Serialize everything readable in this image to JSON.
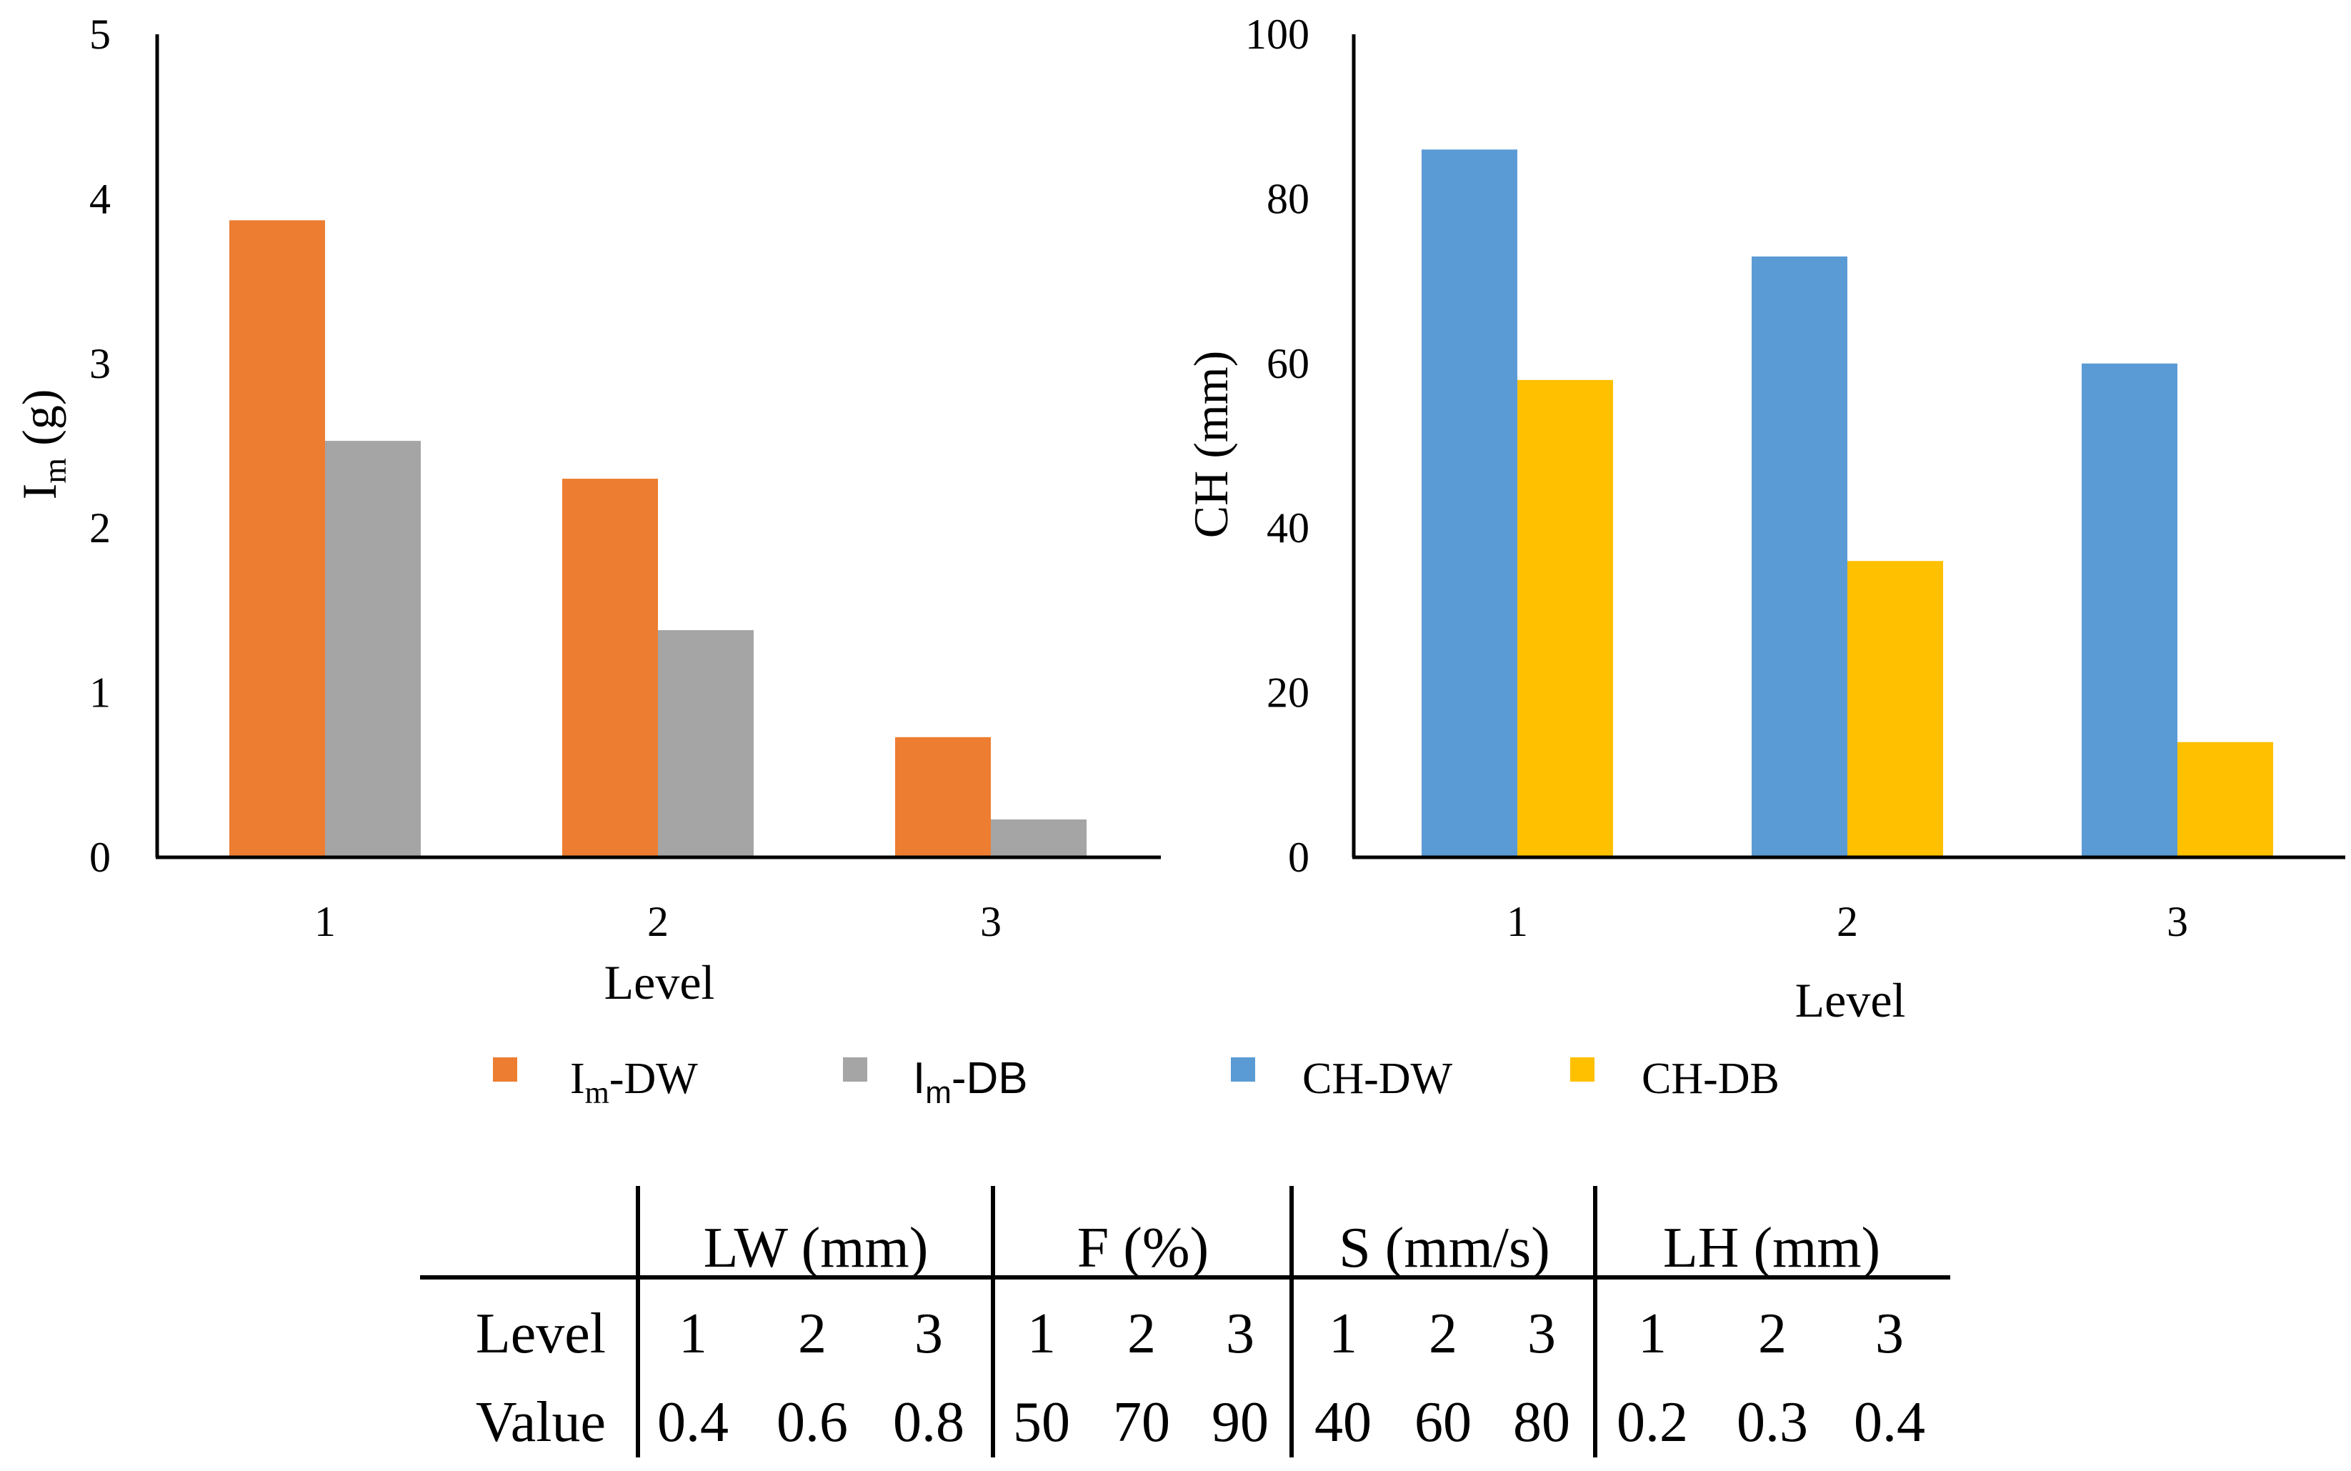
{
  "chart_data": [
    {
      "type": "bar",
      "title": "",
      "xlabel": "Level",
      "ylabel": {
        "main": "I",
        "sub": "m",
        "unit": " (g)"
      },
      "categories": [
        "1",
        "2",
        "3"
      ],
      "ylim": [
        0,
        5
      ],
      "yticks": [
        "0",
        "1",
        "2",
        "3",
        "4",
        "5"
      ],
      "series": [
        {
          "name": {
            "main": "I",
            "sub": "m",
            "rest": "-DW"
          },
          "color": "#ED7D31",
          "values": [
            3.87,
            2.3,
            0.73
          ]
        },
        {
          "name": {
            "main": "I",
            "sub": "m",
            "rest": "-DB"
          },
          "color": "#A5A5A5",
          "values": [
            2.53,
            1.38,
            0.23
          ]
        }
      ],
      "grid": false
    },
    {
      "type": "bar",
      "title": "",
      "xlabel": "Level",
      "ylabel": "CH (mm)",
      "categories": [
        "1",
        "2",
        "3"
      ],
      "ylim": [
        0,
        100
      ],
      "yticks": [
        "0",
        "20",
        "40",
        "60",
        "80",
        "100"
      ],
      "series": [
        {
          "name": "CH-DW",
          "color": "#5B9BD5",
          "values": [
            86,
            73,
            60
          ]
        },
        {
          "name": "CH-DB",
          "color": "#FFC000",
          "values": [
            58,
            36,
            14
          ]
        }
      ],
      "grid": false
    }
  ],
  "parameter_table": {
    "groups": [
      "LW (mm)",
      "F (%)",
      "S (mm/s)",
      "LH (mm)"
    ],
    "row_labels": [
      "Level",
      "Value"
    ],
    "levels": [
      "1",
      "2",
      "3",
      "1",
      "2",
      "3",
      "1",
      "2",
      "3",
      "1",
      "2",
      "3"
    ],
    "values": [
      "0.4",
      "0.6",
      "0.8",
      "50",
      "70",
      "90",
      "40",
      "60",
      "80",
      "0.2",
      "0.3",
      "0.4"
    ]
  }
}
